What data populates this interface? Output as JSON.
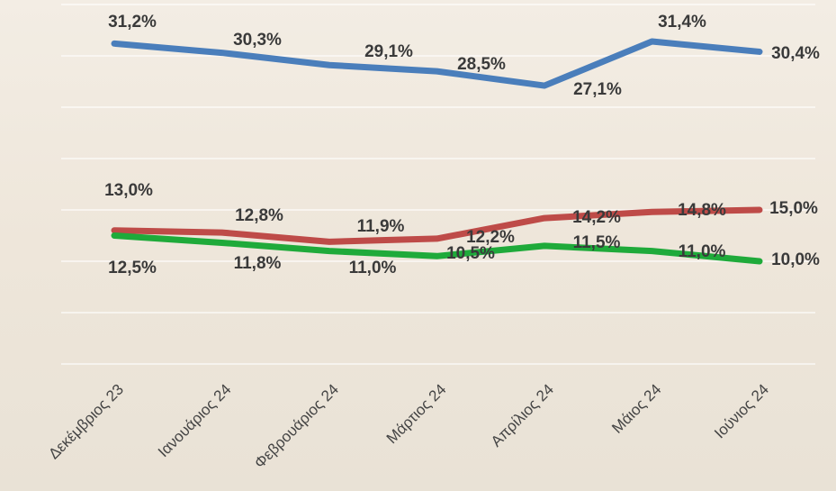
{
  "chart_data": {
    "type": "line",
    "categories": [
      "Δεκέμβριος 23",
      "Ιανουάριος 24",
      "Φεβρουάριος 24",
      "Μάρτιος 24",
      "Απρίλιος 24",
      "Μάιος 24",
      "Ιούνιος 24"
    ],
    "series": [
      {
        "color": "#4a7ebb",
        "values": [
          31.2,
          30.3,
          29.1,
          28.5,
          27.1,
          31.4,
          30.4
        ],
        "value_labels": [
          "31,2%",
          "30,3%",
          "29,1%",
          "28,5%",
          "27,1%",
          "31,4%",
          "30,4%"
        ]
      },
      {
        "color": "#be4b48",
        "values": [
          13.0,
          12.8,
          11.9,
          12.2,
          14.2,
          14.8,
          15.0
        ],
        "value_labels": [
          "13,0%",
          "12,8%",
          "11,9%",
          "12,2%",
          "14,2%",
          "14,8%",
          "15,0%"
        ]
      },
      {
        "color": "#1faa3a",
        "values": [
          12.5,
          11.8,
          11.0,
          10.5,
          11.5,
          11.0,
          10.0
        ],
        "value_labels": [
          "12,5%",
          "11,8%",
          "11,0%",
          "10,5%",
          "11,5%",
          "11,0%",
          "10,0%"
        ]
      }
    ],
    "ylim": [
      0,
      35
    ],
    "yticks": [
      0,
      5,
      10,
      15,
      20,
      25,
      30,
      35
    ],
    "grid": true
  }
}
